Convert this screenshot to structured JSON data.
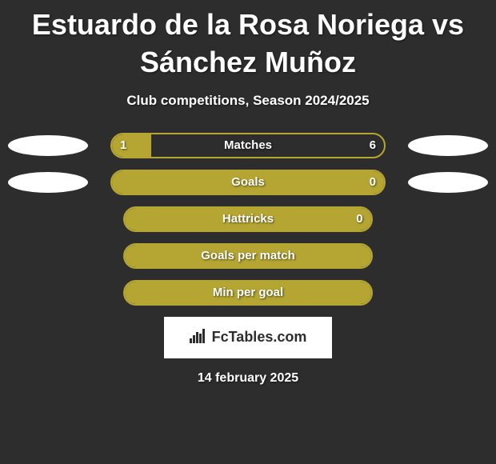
{
  "title": "Estuardo de la Rosa Noriega vs Sánchez Muñoz",
  "subtitle": "Club competitions, Season 2024/2025",
  "colors": {
    "background": "#2d2d2d",
    "bar_border": "#b5a532",
    "bar_fill": "#b5a532",
    "ellipse_fill": "#ffffff",
    "text": "#ffffff"
  },
  "stats": [
    {
      "label": "Matches",
      "left_value": "1",
      "right_value": "6",
      "has_left_ellipse": true,
      "has_right_ellipse": true,
      "fill_percent": 14.3
    },
    {
      "label": "Goals",
      "left_value": "",
      "right_value": "0",
      "has_left_ellipse": true,
      "has_right_ellipse": true,
      "fill_percent": 100
    },
    {
      "label": "Hattricks",
      "left_value": "",
      "right_value": "0",
      "has_left_ellipse": false,
      "has_right_ellipse": false,
      "fill_percent": 100
    },
    {
      "label": "Goals per match",
      "left_value": "",
      "right_value": "",
      "has_left_ellipse": false,
      "has_right_ellipse": false,
      "fill_percent": 100
    },
    {
      "label": "Min per goal",
      "left_value": "",
      "right_value": "",
      "has_left_ellipse": false,
      "has_right_ellipse": false,
      "fill_percent": 100
    }
  ],
  "brand": {
    "text": "FcTables.com"
  },
  "date": "14 february 2025"
}
